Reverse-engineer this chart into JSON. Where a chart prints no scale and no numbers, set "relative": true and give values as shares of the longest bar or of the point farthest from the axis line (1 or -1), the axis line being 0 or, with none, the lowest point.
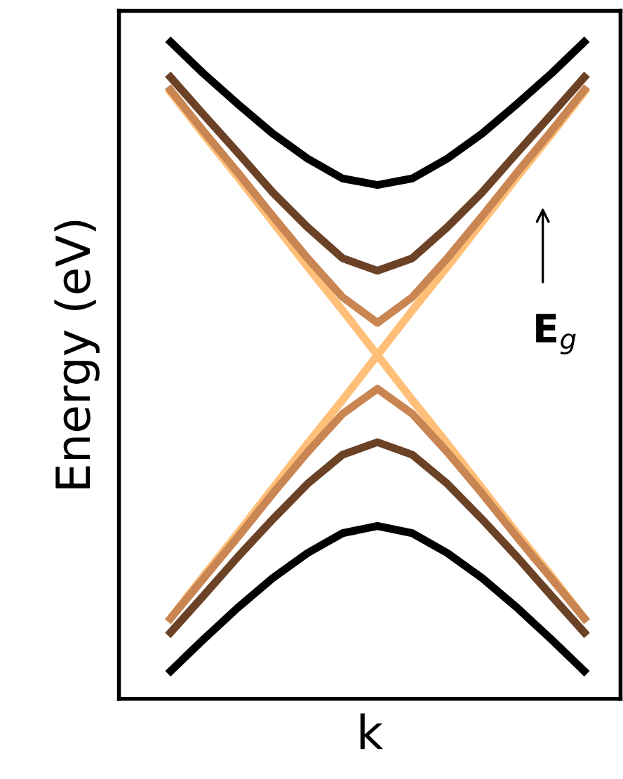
{
  "chart_data": {
    "type": "line",
    "relative": true,
    "xlabel": "k",
    "ylabel": "Energy (eV)",
    "annotations": [
      "E$_{g}$"
    ],
    "categories": [
      null,
      null,
      null,
      null,
      null,
      null,
      null,
      null,
      null,
      null,
      null,
      null,
      null
    ],
    "marker": "none",
    "line_style": "solid",
    "series": [
      {
        "color": "#ffbf78",
        "values": [
          0.925,
          0.857,
          0.791,
          0.723,
          0.655,
          0.589,
          0.521,
          0.589,
          0.655,
          0.723,
          0.791,
          0.857,
          0.925
        ]
      },
      {
        "color": "#ffbf78",
        "values": [
          0.117,
          0.185,
          0.251,
          0.319,
          0.387,
          0.453,
          0.521,
          0.453,
          0.387,
          0.319,
          0.251,
          0.185,
          0.117
        ]
      },
      {
        "color": "#c98552",
        "values": [
          0.928,
          0.862,
          0.798,
          0.732,
          0.668,
          0.609,
          0.57,
          0.609,
          0.668,
          0.732,
          0.798,
          0.862,
          0.928
        ]
      },
      {
        "color": "#c98552",
        "values": [
          0.117,
          0.181,
          0.245,
          0.311,
          0.374,
          0.432,
          0.47,
          0.432,
          0.374,
          0.311,
          0.245,
          0.181,
          0.117
        ]
      },
      {
        "color": "#6b4226",
        "values": [
          0.947,
          0.887,
          0.828,
          0.768,
          0.715,
          0.668,
          0.649,
          0.668,
          0.715,
          0.768,
          0.828,
          0.887,
          0.947
        ]
      },
      {
        "color": "#6b4226",
        "values": [
          0.096,
          0.155,
          0.215,
          0.272,
          0.326,
          0.37,
          0.389,
          0.37,
          0.326,
          0.272,
          0.215,
          0.155,
          0.096
        ]
      },
      {
        "color": "#000000",
        "values": [
          1,
          0.949,
          0.902,
          0.857,
          0.819,
          0.789,
          0.779,
          0.789,
          0.819,
          0.857,
          0.902,
          0.949,
          1
        ]
      },
      {
        "color": "#000000",
        "values": [
          0.038,
          0.089,
          0.138,
          0.183,
          0.221,
          0.251,
          0.262,
          0.251,
          0.221,
          0.183,
          0.138,
          0.089,
          0.038
        ]
      }
    ]
  }
}
